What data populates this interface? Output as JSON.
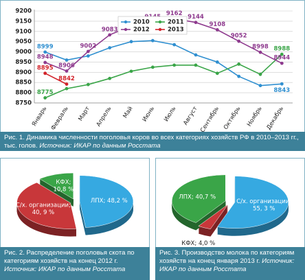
{
  "chart_data": [
    {
      "type": "line",
      "caption": "Рис. 1. Динамика численности поголовья коров во всех категориях хозяйств РФ в 2010–2013 гг., тыс. голов.",
      "source": "Источник: ИКАР по данным Росстата",
      "categories": [
        "Январь",
        "Февраль",
        "Март",
        "Апрель",
        "Май",
        "Июнь",
        "Июль",
        "Август",
        "Сентябрь",
        "Октябрь",
        "Ноябрь",
        "Декабрь"
      ],
      "series": [
        {
          "name": "2010",
          "color": "#2f8fd0",
          "values": [
            8999,
            8960,
            8980,
            9020,
            9050,
            9055,
            9035,
            8985,
            8950,
            8880,
            8835,
            8843
          ],
          "value_labels": [
            "8999",
            null,
            null,
            null,
            null,
            null,
            null,
            null,
            null,
            null,
            null,
            "8843"
          ]
        },
        {
          "name": "2011",
          "color": "#3aa548",
          "values": [
            8775,
            8820,
            8840,
            8870,
            8905,
            8925,
            8935,
            8935,
            8895,
            8940,
            8890,
            8988
          ],
          "value_labels": [
            "8775",
            null,
            null,
            null,
            null,
            null,
            null,
            null,
            null,
            null,
            null,
            "8988"
          ]
        },
        {
          "name": "2012",
          "color": "#8e3a8e",
          "values": [
            8948,
            8906,
            9002,
            9083,
            9127,
            9145,
            9162,
            9144,
            9108,
            9052,
            8998,
            8944
          ],
          "value_labels": [
            "8948",
            "8906",
            "9002",
            "9083",
            "9127",
            "9145",
            "9162",
            "9144",
            "9108",
            "9052",
            "8998",
            "8944"
          ]
        },
        {
          "name": "2013",
          "color": "#d2232a",
          "values": [
            8895,
            8842,
            null,
            null,
            null,
            null,
            null,
            null,
            null,
            null,
            null,
            null
          ],
          "value_labels": [
            "8895",
            "8842",
            null,
            null,
            null,
            null,
            null,
            null,
            null,
            null,
            null,
            null
          ]
        }
      ],
      "ylim": [
        8750,
        9200
      ],
      "yticks": [
        8750,
        8800,
        8850,
        8900,
        8950,
        9000,
        9050,
        9100,
        9150,
        9200
      ],
      "grid": true,
      "legend": "top"
    },
    {
      "type": "pie",
      "caption": "Рис. 2. Распределение поголовья скота по категориям хозяйств на конец 2012 г.",
      "source": "Источник: ИКАР по данным Росстата",
      "values": [
        48.2,
        40.9,
        10.8
      ],
      "value_labels": [
        "ЛПХ; 48,2 %",
        "С/х. организации;\n40, 9 %",
        "КФХ;\n10,8 %"
      ],
      "colors": [
        "#36a9e1",
        "#c8373a",
        "#3aa548"
      ]
    },
    {
      "type": "pie",
      "caption": "Рис. 3. Производство молока по категориям хозяйств на конец января 2013 г.",
      "source": "Источник: ИКАР по данным Росстата",
      "values": [
        55.3,
        4.0,
        40.7
      ],
      "value_labels": [
        "С/х. организации;\n55, 3 %",
        "КФХ; 4,0 %",
        "ЛПХ; 40,7 %"
      ],
      "colors": [
        "#36a9e1",
        "#c8373a",
        "#3aa548"
      ]
    }
  ]
}
